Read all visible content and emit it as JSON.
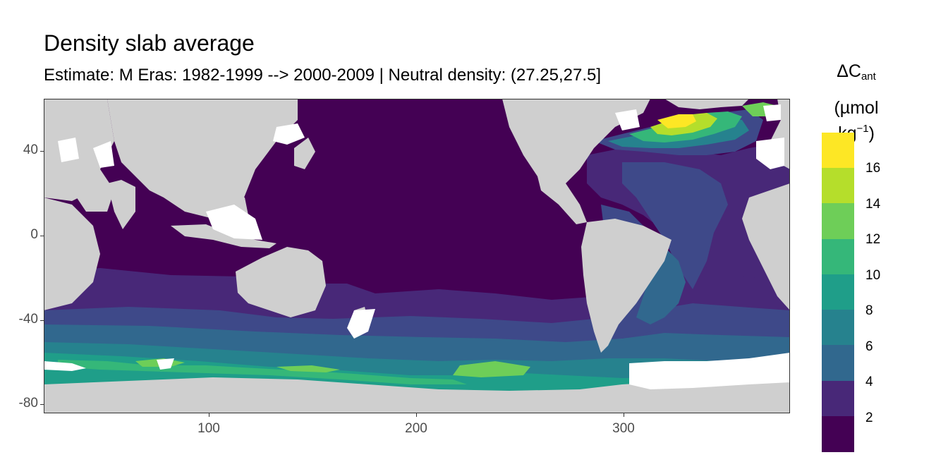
{
  "title": "Density slab average",
  "subtitle": "Estimate: M Eras: 1982-1999 --> 2000-2009 | Neutral density: (27.25,27.5]",
  "legend": {
    "title_main": "ΔC",
    "title_sub": "ant",
    "title_unit_pre": "(µmol kg",
    "title_unit_sup": "−1",
    "title_unit_post": ")",
    "labels": [
      "16",
      "14",
      "12",
      "10",
      "8",
      "6",
      "4",
      "2"
    ],
    "colors": [
      "#fde725",
      "#b5de2b",
      "#6ece58",
      "#35b779",
      "#1f9e89",
      "#26828e",
      "#31688e",
      "#3e4989",
      "#482878",
      "#440154"
    ]
  },
  "axes": {
    "y_ticks": [
      "40",
      "0",
      "-40",
      "-80"
    ],
    "x_ticks": [
      "100",
      "200",
      "300"
    ]
  },
  "colors": {
    "land": "#cfcfcf",
    "no_data": "#ffffff",
    "ocean_base": "#440154"
  }
}
